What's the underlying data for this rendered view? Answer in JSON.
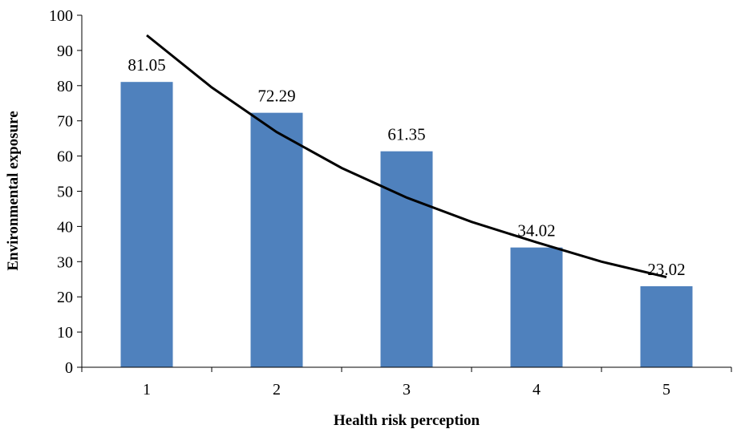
{
  "chart_data": {
    "type": "bar",
    "categories": [
      "1",
      "2",
      "3",
      "4",
      "5"
    ],
    "values": [
      81.05,
      72.29,
      61.35,
      34.02,
      23.02
    ],
    "data_labels": [
      "81.05",
      "72.29",
      "61.35",
      "34.02",
      "23.02"
    ],
    "xlabel": "Health risk perception",
    "ylabel": "Environmental exposure",
    "ylim": [
      0,
      100
    ],
    "yticks": [
      "0",
      "10",
      "20",
      "30",
      "40",
      "50",
      "60",
      "70",
      "80",
      "90",
      "100"
    ],
    "grid": false,
    "legend": "none",
    "bar_color": "#4f81bd",
    "trendline": {
      "type": "exponential",
      "color": "#000000",
      "x": [
        1,
        1.5,
        2,
        2.5,
        3,
        3.5,
        4,
        4.5,
        5
      ],
      "y": [
        94.3,
        79.5,
        66.8,
        56.6,
        48.2,
        41.3,
        35.5,
        30.0,
        25.6
      ]
    }
  }
}
